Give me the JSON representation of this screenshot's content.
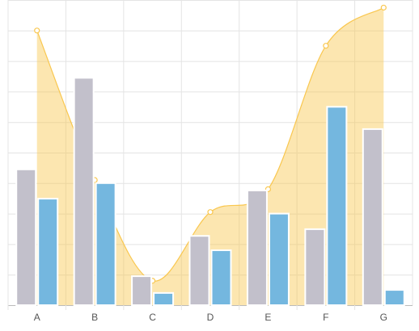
{
  "chart_data": {
    "type": "bar-area",
    "categories": [
      "A",
      "B",
      "C",
      "D",
      "E",
      "F",
      "G"
    ],
    "series": [
      {
        "type": "area",
        "color": "#f9c74f",
        "values": [
          9.0,
          4.1,
          0.8,
          3.05,
          3.8,
          8.5,
          9.75
        ]
      },
      {
        "type": "bar",
        "color": "#c2c0cb",
        "values": [
          4.45,
          7.45,
          0.95,
          2.27,
          3.76,
          2.49,
          5.77
        ]
      },
      {
        "type": "bar",
        "color": "#74b7df",
        "values": [
          3.49,
          4.0,
          0.4,
          1.8,
          3.0,
          6.5,
          0.5
        ]
      }
    ],
    "ylim": [
      0,
      10
    ],
    "yticks": [
      0,
      1,
      2,
      3,
      4,
      5,
      6,
      7,
      8,
      9,
      10
    ],
    "grid": true
  }
}
